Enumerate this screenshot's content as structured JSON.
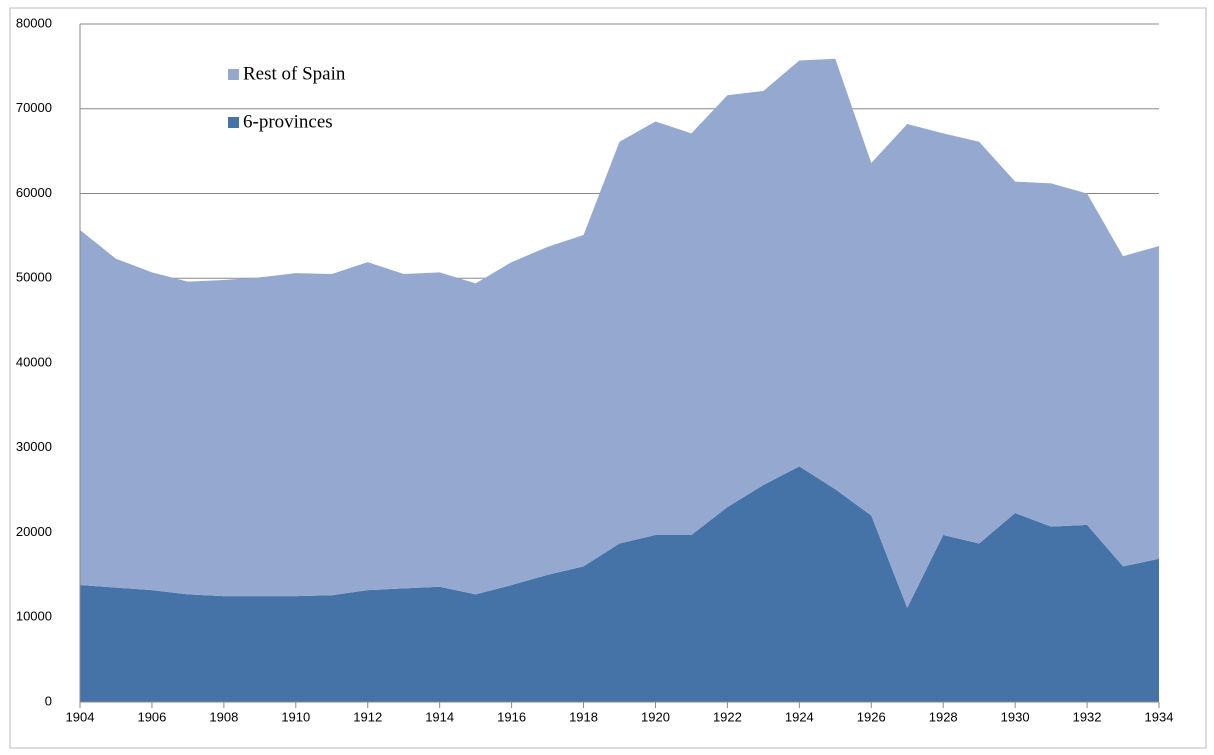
{
  "chart_data": {
    "type": "stacked-area",
    "x": [
      1904,
      1905,
      1906,
      1907,
      1908,
      1909,
      1910,
      1911,
      1912,
      1913,
      1914,
      1915,
      1916,
      1917,
      1918,
      1919,
      1920,
      1921,
      1922,
      1923,
      1924,
      1925,
      1926,
      1927,
      1928,
      1929,
      1930,
      1931,
      1932,
      1933,
      1934
    ],
    "series": [
      {
        "name": "6-provinces",
        "color": "#4573a7",
        "values": [
          13800,
          13500,
          13200,
          12700,
          12500,
          12500,
          12500,
          12600,
          13200,
          13400,
          13600,
          12700,
          13800,
          15000,
          16000,
          18700,
          19700,
          19700,
          23000,
          25600,
          27800,
          25100,
          22000,
          11100,
          19700,
          18700,
          22300,
          20700,
          20900,
          16000,
          16900
        ]
      },
      {
        "name": "Rest of Spain",
        "color": "#95a9d0",
        "values": [
          41900,
          38800,
          37500,
          36900,
          37300,
          37600,
          38100,
          37900,
          38700,
          37100,
          37100,
          36700,
          38100,
          38700,
          39100,
          47400,
          48800,
          47400,
          48600,
          46500,
          47900,
          50800,
          41600,
          57100,
          47400,
          47400,
          39100,
          40500,
          39100,
          36600,
          36900
        ]
      }
    ],
    "xlim": [
      1904,
      1934
    ],
    "xticks": [
      1904,
      1906,
      1908,
      1910,
      1912,
      1914,
      1916,
      1918,
      1920,
      1922,
      1924,
      1926,
      1928,
      1930,
      1932,
      1934
    ],
    "ylim": [
      0,
      80000
    ],
    "yticks": [
      0,
      10000,
      20000,
      30000,
      40000,
      50000,
      60000,
      70000,
      80000
    ],
    "grid": true,
    "legend": "top-left"
  }
}
